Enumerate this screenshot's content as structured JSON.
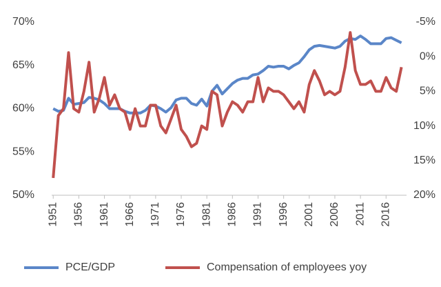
{
  "chart_data": {
    "type": "line",
    "x": [
      1951,
      1952,
      1953,
      1954,
      1955,
      1956,
      1957,
      1958,
      1959,
      1960,
      1961,
      1962,
      1963,
      1964,
      1965,
      1966,
      1967,
      1968,
      1969,
      1970,
      1971,
      1972,
      1973,
      1974,
      1975,
      1976,
      1977,
      1978,
      1979,
      1980,
      1981,
      1982,
      1983,
      1984,
      1985,
      1986,
      1987,
      1988,
      1989,
      1990,
      1991,
      1992,
      1993,
      1994,
      1995,
      1996,
      1997,
      1998,
      1999,
      2000,
      2001,
      2002,
      2003,
      2004,
      2005,
      2006,
      2007,
      2008,
      2009,
      2010,
      2011,
      2012,
      2013,
      2014,
      2015,
      2016,
      2017,
      2018,
      2019
    ],
    "xlim": [
      1950.7,
      2020
    ],
    "xticks": [
      1951,
      1956,
      1961,
      1966,
      1971,
      1976,
      1981,
      1986,
      1991,
      1996,
      2001,
      2006,
      2011,
      2016
    ],
    "ylim": [
      50,
      70
    ],
    "yticks": [
      {
        "value": 50,
        "label": "50%"
      },
      {
        "value": 55,
        "label": "55%"
      },
      {
        "value": 60,
        "label": "60%"
      },
      {
        "value": 65,
        "label": "65%"
      },
      {
        "value": 70,
        "label": "70%"
      }
    ],
    "y2lim": [
      20,
      -5
    ],
    "y2ticks": [
      {
        "value": -5,
        "label": "-5%"
      },
      {
        "value": 0,
        "label": "0%"
      },
      {
        "value": 5,
        "label": "5%"
      },
      {
        "value": 10,
        "label": "10%"
      },
      {
        "value": 15,
        "label": "15%"
      },
      {
        "value": 20,
        "label": "20%"
      }
    ],
    "grid": false,
    "legend": "bottom",
    "series": [
      {
        "name": "PCE/GDP",
        "color": "#5a86c8",
        "values": [
          60.0,
          59.7,
          59.8,
          61.2,
          60.5,
          60.6,
          60.7,
          61.3,
          61.2,
          61.0,
          60.6,
          60.0,
          60.0,
          60.0,
          59.7,
          59.5,
          59.5,
          59.5,
          59.8,
          60.4,
          60.3,
          60.0,
          59.6,
          60.1,
          61.0,
          61.2,
          61.2,
          60.6,
          60.4,
          61.1,
          60.3,
          62.0,
          62.7,
          61.7,
          62.3,
          62.9,
          63.3,
          63.5,
          63.5,
          63.9,
          64.0,
          64.4,
          64.9,
          64.8,
          64.9,
          64.9,
          64.6,
          65.0,
          65.3,
          66.0,
          66.8,
          67.2,
          67.3,
          67.2,
          67.1,
          67.0,
          67.2,
          67.8,
          68.1,
          68.0,
          68.4,
          68.0,
          67.5,
          67.5,
          67.5,
          68.1,
          68.2,
          67.9,
          67.6
        ]
      },
      {
        "name": "Compensation of employees yoy",
        "color": "#c0504d",
        "axis": "y2",
        "values": [
          17.5,
          8.5,
          7.5,
          -0.6,
          7.5,
          8,
          5,
          0.8,
          8,
          6,
          3,
          7,
          5.5,
          7.5,
          8,
          10.5,
          7.5,
          10,
          10,
          7,
          7,
          10,
          11,
          9,
          7,
          10.5,
          11.5,
          13,
          12.5,
          10,
          10.5,
          5,
          5.5,
          10,
          8,
          6.5,
          7,
          8,
          6.5,
          6.5,
          3,
          6.5,
          4.5,
          5,
          5,
          5.5,
          6.5,
          7.5,
          6.5,
          8,
          4,
          2,
          3.5,
          5.5,
          5,
          5.5,
          5,
          1.5,
          -3.5,
          2,
          4,
          4,
          3.5,
          5,
          5,
          3,
          4.5,
          5,
          1.5
        ]
      }
    ]
  }
}
